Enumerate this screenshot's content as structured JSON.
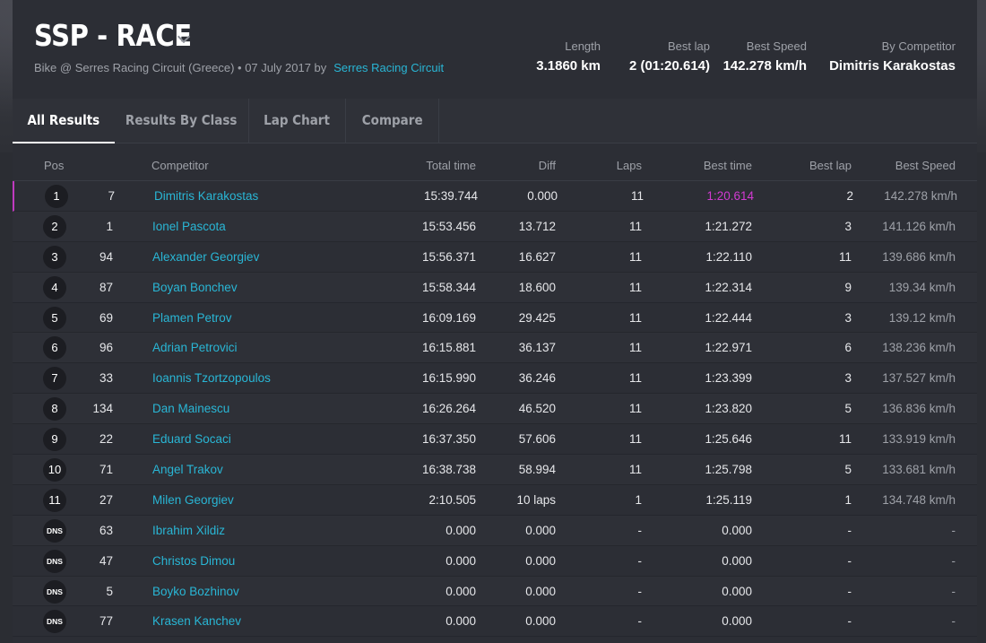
{
  "header": {
    "title": "SSP - RACE",
    "subtitle": "Bike @ Serres Racing Circuit (Greece) • 07 July 2017 by",
    "subtitle_link": "Serres Racing Circuit",
    "stats": [
      {
        "label": "Length",
        "value": "3.1860 km"
      },
      {
        "label": "Best lap",
        "value": "2 (01:20.614)"
      },
      {
        "label": "Best Speed",
        "value": "142.278 km/h"
      },
      {
        "label": "By Competitor",
        "value": "Dimitris Karakostas"
      }
    ]
  },
  "tabs": [
    {
      "label": "All Results",
      "active": true
    },
    {
      "label": "Results By Class",
      "active": false
    },
    {
      "label": "Lap Chart",
      "active": false
    },
    {
      "label": "Compare",
      "active": false
    }
  ],
  "table": {
    "columns": {
      "pos": "Pos",
      "competitor": "Competitor",
      "total": "Total time",
      "diff": "Diff",
      "laps": "Laps",
      "best_time": "Best time",
      "best_lap": "Best lap",
      "best_speed": "Best Speed"
    },
    "rows": [
      {
        "pos": "1",
        "num": "7",
        "name": "Dimitris Karakostas",
        "total": "15:39.744",
        "diff": "0.000",
        "laps": "11",
        "best_time": "1:20.614",
        "best_lap": "2",
        "speed": "142.278 km/h"
      },
      {
        "pos": "2",
        "num": "1",
        "name": "Ionel Pascota",
        "total": "15:53.456",
        "diff": "13.712",
        "laps": "11",
        "best_time": "1:21.272",
        "best_lap": "3",
        "speed": "141.126 km/h"
      },
      {
        "pos": "3",
        "num": "94",
        "name": "Alexander Georgiev",
        "total": "15:56.371",
        "diff": "16.627",
        "laps": "11",
        "best_time": "1:22.110",
        "best_lap": "11",
        "speed": "139.686 km/h"
      },
      {
        "pos": "4",
        "num": "87",
        "name": "Boyan Bonchev",
        "total": "15:58.344",
        "diff": "18.600",
        "laps": "11",
        "best_time": "1:22.314",
        "best_lap": "9",
        "speed": "139.34 km/h"
      },
      {
        "pos": "5",
        "num": "69",
        "name": "Plamen Petrov",
        "total": "16:09.169",
        "diff": "29.425",
        "laps": "11",
        "best_time": "1:22.444",
        "best_lap": "3",
        "speed": "139.12 km/h"
      },
      {
        "pos": "6",
        "num": "96",
        "name": "Adrian Petrovici",
        "total": "16:15.881",
        "diff": "36.137",
        "laps": "11",
        "best_time": "1:22.971",
        "best_lap": "6",
        "speed": "138.236 km/h"
      },
      {
        "pos": "7",
        "num": "33",
        "name": "Ioannis Tzortzopoulos",
        "total": "16:15.990",
        "diff": "36.246",
        "laps": "11",
        "best_time": "1:23.399",
        "best_lap": "3",
        "speed": "137.527 km/h"
      },
      {
        "pos": "8",
        "num": "134",
        "name": "Dan Mainescu",
        "total": "16:26.264",
        "diff": "46.520",
        "laps": "11",
        "best_time": "1:23.820",
        "best_lap": "5",
        "speed": "136.836 km/h"
      },
      {
        "pos": "9",
        "num": "22",
        "name": "Eduard Socaci",
        "total": "16:37.350",
        "diff": "57.606",
        "laps": "11",
        "best_time": "1:25.646",
        "best_lap": "11",
        "speed": "133.919 km/h"
      },
      {
        "pos": "10",
        "num": "71",
        "name": "Angel Trakov",
        "total": "16:38.738",
        "diff": "58.994",
        "laps": "11",
        "best_time": "1:25.798",
        "best_lap": "5",
        "speed": "133.681 km/h"
      },
      {
        "pos": "11",
        "num": "27",
        "name": "Milen Georgiev",
        "total": "2:10.505",
        "diff": "10 laps",
        "laps": "1",
        "best_time": "1:25.119",
        "best_lap": "1",
        "speed": "134.748 km/h"
      },
      {
        "pos": "DNS",
        "num": "63",
        "name": "Ibrahim Xildiz",
        "total": "0.000",
        "diff": "0.000",
        "laps": "-",
        "best_time": "0.000",
        "best_lap": "-",
        "speed": "-"
      },
      {
        "pos": "DNS",
        "num": "47",
        "name": "Christos Dimou",
        "total": "0.000",
        "diff": "0.000",
        "laps": "-",
        "best_time": "0.000",
        "best_lap": "-",
        "speed": "-"
      },
      {
        "pos": "DNS",
        "num": "5",
        "name": "Boyko Bozhinov",
        "total": "0.000",
        "diff": "0.000",
        "laps": "-",
        "best_time": "0.000",
        "best_lap": "-",
        "speed": "-"
      },
      {
        "pos": "DNS",
        "num": "77",
        "name": "Krasen Kanchev",
        "total": "0.000",
        "diff": "0.000",
        "laps": "-",
        "best_time": "0.000",
        "best_lap": "-",
        "speed": "-"
      }
    ]
  },
  "colors": {
    "accent_link": "#29b6d5",
    "fastest_lap": "#d23ad2",
    "background": "#2b2d33"
  }
}
